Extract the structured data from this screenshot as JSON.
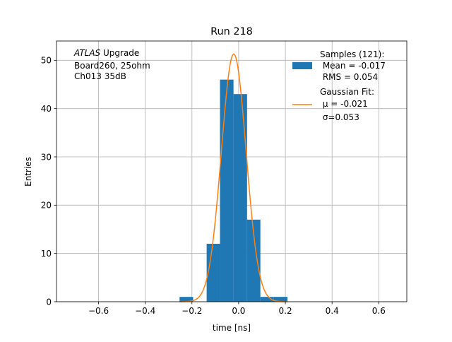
{
  "chart_data": {
    "type": "bar",
    "title": "Run 218",
    "xlabel": "time [ns]",
    "ylabel": "Entries",
    "xlim": [
      -0.78,
      0.72
    ],
    "ylim": [
      0,
      54
    ],
    "xticks": [
      -0.6,
      -0.4,
      -0.2,
      0.0,
      0.2,
      0.4,
      0.6
    ],
    "xtick_labels": [
      "−0.6",
      "−0.4",
      "−0.2",
      "0.0",
      "0.2",
      "0.4",
      "0.6"
    ],
    "yticks": [
      0,
      10,
      20,
      30,
      40,
      50
    ],
    "ytick_labels": [
      "0",
      "10",
      "20",
      "30",
      "40",
      "50"
    ],
    "grid": true,
    "legend_position": "top-right",
    "annotation": {
      "line1_italic": "ATLAS",
      "line1_rest": " Upgrade",
      "line2": "Board260, 25ohm",
      "line3": "Ch013 35dB",
      "position": "top-left"
    },
    "series": [
      {
        "type": "histogram",
        "color": "#1f77b4",
        "legend_lines": [
          "Samples (121):",
          " Mean = -0.017",
          " RMS = 0.054"
        ],
        "bins": [
          {
            "x0": -0.253,
            "x1": -0.195,
            "count": 1
          },
          {
            "x0": -0.195,
            "x1": -0.137,
            "count": 0
          },
          {
            "x0": -0.137,
            "x1": -0.08,
            "count": 12
          },
          {
            "x0": -0.08,
            "x1": -0.022,
            "count": 46
          },
          {
            "x0": -0.022,
            "x1": 0.036,
            "count": 43
          },
          {
            "x0": 0.036,
            "x1": 0.093,
            "count": 17
          },
          {
            "x0": 0.093,
            "x1": 0.151,
            "count": 1
          },
          {
            "x0": 0.151,
            "x1": 0.209,
            "count": 1
          }
        ]
      },
      {
        "type": "curve",
        "color": "#ff7f0e",
        "legend_lines": [
          "Gaussian Fit:",
          " μ = -0.021",
          " σ=0.053"
        ],
        "mu": -0.021,
        "sigma": 0.053,
        "amplitude": 51.3,
        "x_range": [
          -0.253,
          0.209
        ]
      }
    ]
  }
}
